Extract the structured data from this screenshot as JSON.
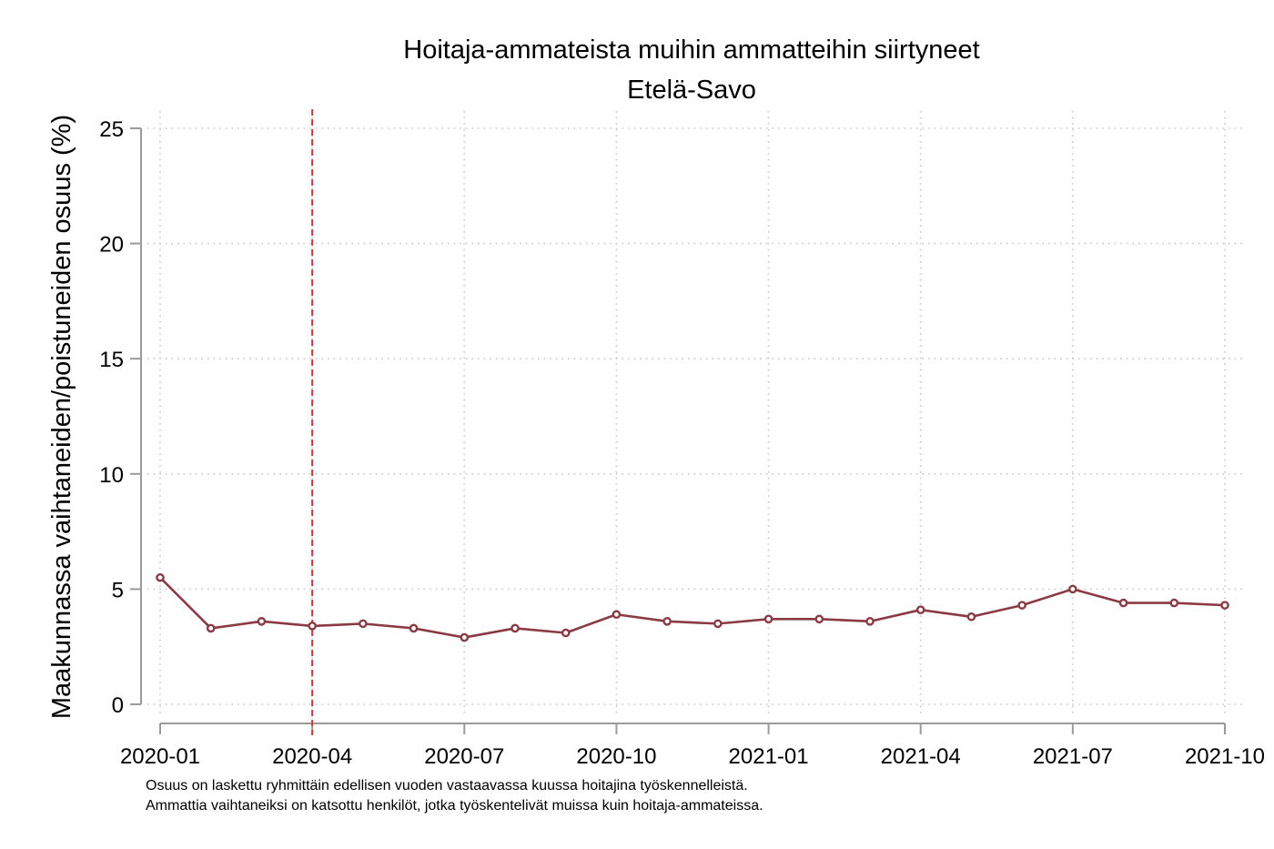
{
  "chart_data": {
    "type": "line",
    "title": "Hoitaja-ammateista muihin ammatteihin siirtyneet",
    "subtitle": "Etelä-Savo",
    "ylabel": "Maakunnassa vaihtaneiden/poistuneiden osuus (%)",
    "xlabel": "",
    "ylim": [
      0,
      25
    ],
    "yticks": [
      0,
      5,
      10,
      15,
      20,
      25
    ],
    "xticks": [
      "2020-01",
      "2020-04",
      "2020-07",
      "2020-10",
      "2021-01",
      "2021-04",
      "2021-07",
      "2021-10"
    ],
    "grid": true,
    "x": [
      "2020-01",
      "2020-02",
      "2020-03",
      "2020-04",
      "2020-05",
      "2020-06",
      "2020-07",
      "2020-08",
      "2020-09",
      "2020-10",
      "2020-11",
      "2020-12",
      "2021-01",
      "2021-02",
      "2021-03",
      "2021-04",
      "2021-05",
      "2021-06",
      "2021-07",
      "2021-08",
      "2021-09",
      "2021-10"
    ],
    "series": [
      {
        "values": [
          5.5,
          3.3,
          3.6,
          3.4,
          3.5,
          3.3,
          2.9,
          3.3,
          3.1,
          3.9,
          3.6,
          3.5,
          3.7,
          3.7,
          3.6,
          4.1,
          3.8,
          4.3,
          5.0,
          4.4,
          4.4,
          4.3
        ],
        "color": "#8b3a44"
      }
    ],
    "reference_line": {
      "x": "2020-04",
      "color": "#e03030",
      "style": "dashed"
    },
    "notes": [
      "Osuus on laskettu ryhmittäin edellisen vuoden vastaavassa kuussa hoitajina työskennelleistä.",
      "Ammattia vaihtaneiksi on katsottu henkilöt, jotka työskentelivät muissa kuin hoitaja-ammateissa."
    ]
  }
}
